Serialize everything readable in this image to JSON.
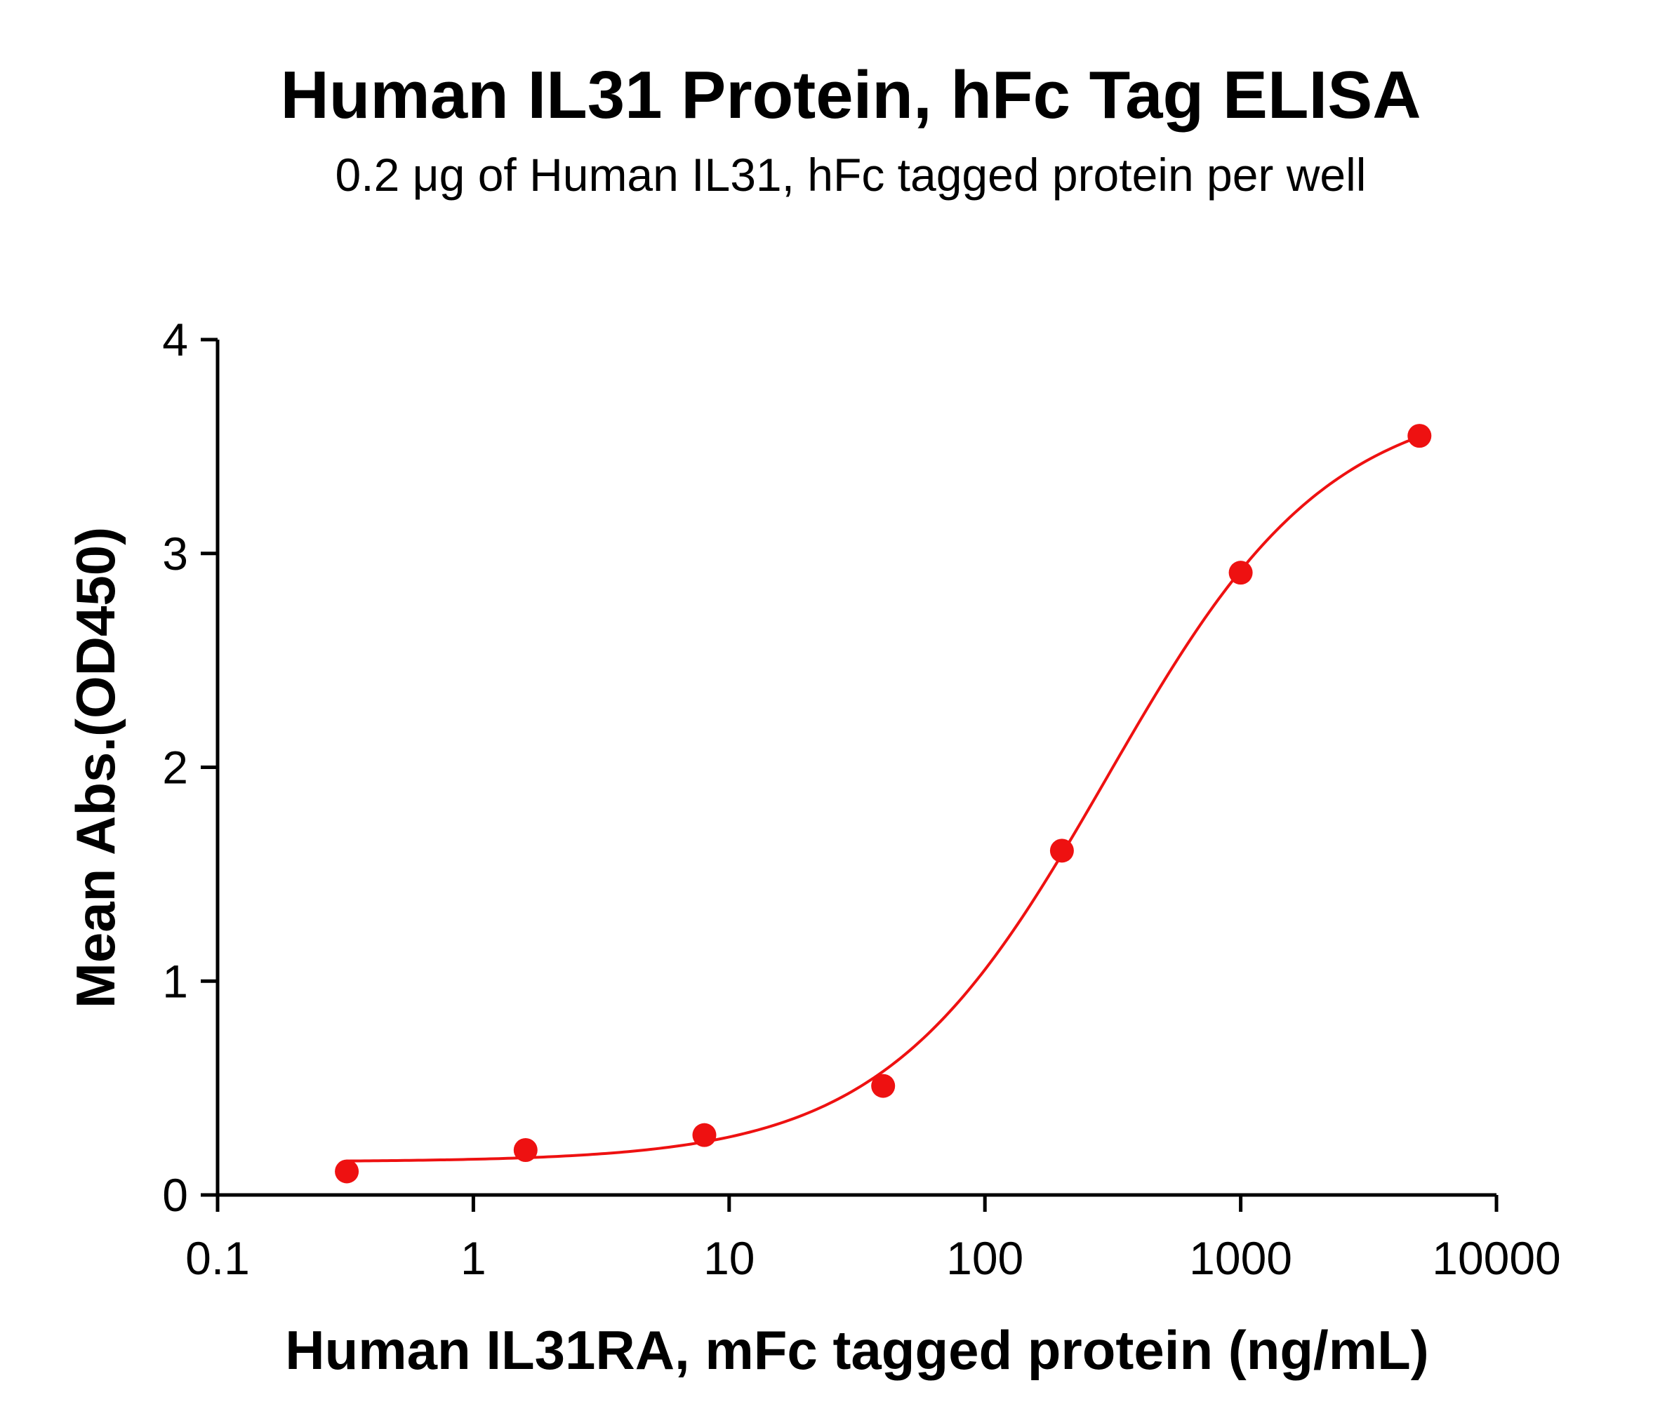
{
  "chart_data": {
    "type": "scatter",
    "title": "Human IL31 Protein, hFc Tag ELISA",
    "subtitle": "0.2 μg of Human IL31, hFc tagged protein per well",
    "xlabel": "Human IL31RA, mFc tagged protein (ng/mL)",
    "ylabel": "Mean Abs.(OD450)",
    "x_scale": "log",
    "xlim": [
      0.1,
      10000
    ],
    "ylim": [
      0,
      4
    ],
    "x_ticks": [
      0.1,
      1,
      10,
      100,
      1000,
      10000
    ],
    "x_tick_labels": [
      "0.1",
      "1",
      "10",
      "100",
      "1000",
      "10000"
    ],
    "y_ticks": [
      0,
      1,
      2,
      3,
      4
    ],
    "y_tick_labels": [
      "0",
      "1",
      "2",
      "3",
      "4"
    ],
    "grid": false,
    "legend": "none",
    "series": [
      {
        "x": [
          0.32,
          1.6,
          8,
          40,
          200,
          1000,
          5000
        ],
        "y": [
          0.11,
          0.21,
          0.28,
          0.51,
          1.61,
          2.91,
          3.55
        ],
        "color": "#ee1111",
        "marker": "circle",
        "fit_curve": "4PL"
      }
    ]
  }
}
